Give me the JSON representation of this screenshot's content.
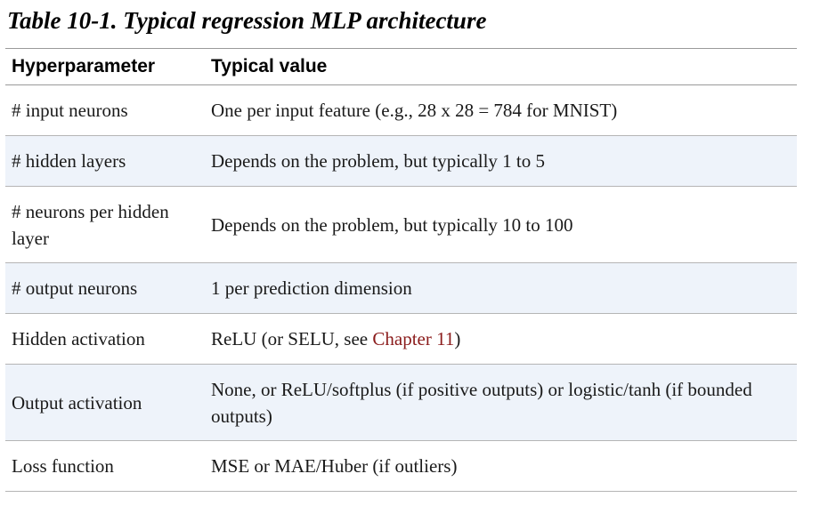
{
  "caption": "Table 10-1. Typical regression MLP architecture",
  "columns": [
    "Hyperparameter",
    "Typical value"
  ],
  "rows": [
    {
      "param": "# input neurons",
      "value": "One per input feature (e.g., 28 x 28 = 784 for MNIST)"
    },
    {
      "param": "# hidden layers",
      "value": "Depends on the problem, but typically 1 to 5"
    },
    {
      "param": "# neurons per hidden layer",
      "value": "Depends on the problem, but typically 10 to 100"
    },
    {
      "param": "# output neurons",
      "value": "1 per prediction dimension"
    },
    {
      "param": "Hidden activation",
      "value_before": "ReLU (or SELU, see ",
      "value_link": "Chapter 11",
      "value_after": ")"
    },
    {
      "param": "Output activation",
      "value": "None, or ReLU/softplus (if positive outputs) or logistic/tanh (if bounded outputs)"
    },
    {
      "param": "Loss function",
      "value": "MSE or MAE/Huber (if outliers)"
    }
  ],
  "colors": {
    "link": "#8b1c1c",
    "row_stripe": "#eef3fa",
    "rule": "#9a9a9a"
  }
}
